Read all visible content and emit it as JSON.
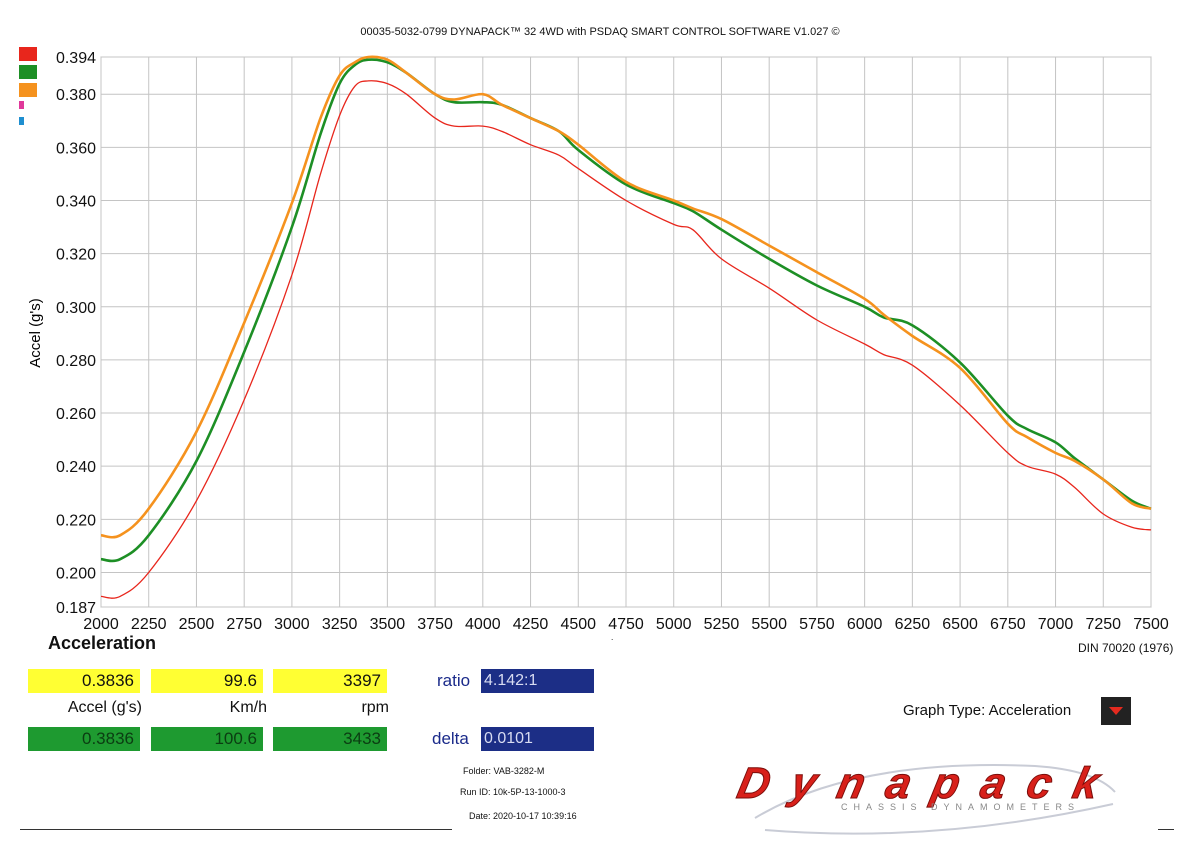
{
  "header": {
    "title": "00035-5032-0799 DYNAPACK™ 32 4WD with PSDAQ SMART CONTROL SOFTWARE V1.027 ©"
  },
  "chart_data": {
    "type": "line",
    "xlabel": "Engine RPM",
    "ylabel": "Accel (g's)",
    "xlim": [
      2000,
      7500
    ],
    "ylim": [
      0.187,
      0.394
    ],
    "x_ticks": [
      "2000",
      "2250",
      "2500",
      "2750",
      "3000",
      "3250",
      "3500",
      "3750",
      "4000",
      "4250",
      "4500",
      "4750",
      "5000",
      "5250",
      "5500",
      "5750",
      "6000",
      "6250",
      "6500",
      "6750",
      "7000",
      "7250",
      "7500"
    ],
    "y_ticks": [
      "0.187",
      "0.200",
      "0.220",
      "0.240",
      "0.260",
      "0.280",
      "0.300",
      "0.320",
      "0.340",
      "0.360",
      "0.380",
      "0.394"
    ],
    "grid": true,
    "series": [
      {
        "color": "#e8261c",
        "points": [
          [
            2000,
            0.191
          ],
          [
            2100,
            0.191
          ],
          [
            2250,
            0.2
          ],
          [
            2500,
            0.227
          ],
          [
            2750,
            0.265
          ],
          [
            3000,
            0.312
          ],
          [
            3150,
            0.35
          ],
          [
            3250,
            0.372
          ],
          [
            3330,
            0.383
          ],
          [
            3400,
            0.385
          ],
          [
            3500,
            0.384
          ],
          [
            3600,
            0.38
          ],
          [
            3750,
            0.371
          ],
          [
            3850,
            0.368
          ],
          [
            4000,
            0.368
          ],
          [
            4100,
            0.366
          ],
          [
            4250,
            0.361
          ],
          [
            4400,
            0.357
          ],
          [
            4500,
            0.352
          ],
          [
            4750,
            0.34
          ],
          [
            5000,
            0.331
          ],
          [
            5100,
            0.329
          ],
          [
            5250,
            0.318
          ],
          [
            5500,
            0.307
          ],
          [
            5750,
            0.295
          ],
          [
            6000,
            0.286
          ],
          [
            6100,
            0.282
          ],
          [
            6250,
            0.278
          ],
          [
            6500,
            0.263
          ],
          [
            6750,
            0.245
          ],
          [
            6850,
            0.24
          ],
          [
            7000,
            0.237
          ],
          [
            7100,
            0.232
          ],
          [
            7250,
            0.222
          ],
          [
            7400,
            0.217
          ],
          [
            7500,
            0.216
          ]
        ]
      },
      {
        "color": "#1d8f25",
        "points": [
          [
            2000,
            0.205
          ],
          [
            2100,
            0.205
          ],
          [
            2250,
            0.214
          ],
          [
            2500,
            0.242
          ],
          [
            2750,
            0.283
          ],
          [
            3000,
            0.33
          ],
          [
            3150,
            0.365
          ],
          [
            3250,
            0.384
          ],
          [
            3330,
            0.391
          ],
          [
            3400,
            0.393
          ],
          [
            3500,
            0.392
          ],
          [
            3600,
            0.388
          ],
          [
            3750,
            0.38
          ],
          [
            3850,
            0.377
          ],
          [
            4000,
            0.377
          ],
          [
            4100,
            0.376
          ],
          [
            4250,
            0.371
          ],
          [
            4400,
            0.366
          ],
          [
            4500,
            0.359
          ],
          [
            4750,
            0.346
          ],
          [
            5000,
            0.339
          ],
          [
            5100,
            0.336
          ],
          [
            5250,
            0.329
          ],
          [
            5500,
            0.318
          ],
          [
            5750,
            0.308
          ],
          [
            6000,
            0.3
          ],
          [
            6100,
            0.296
          ],
          [
            6250,
            0.293
          ],
          [
            6500,
            0.279
          ],
          [
            6750,
            0.259
          ],
          [
            6850,
            0.254
          ],
          [
            7000,
            0.249
          ],
          [
            7100,
            0.243
          ],
          [
            7250,
            0.235
          ],
          [
            7400,
            0.227
          ],
          [
            7500,
            0.224
          ]
        ]
      },
      {
        "color": "#f5921e",
        "points": [
          [
            2000,
            0.214
          ],
          [
            2100,
            0.214
          ],
          [
            2250,
            0.224
          ],
          [
            2500,
            0.253
          ],
          [
            2750,
            0.294
          ],
          [
            3000,
            0.339
          ],
          [
            3150,
            0.371
          ],
          [
            3250,
            0.387
          ],
          [
            3330,
            0.392
          ],
          [
            3400,
            0.394
          ],
          [
            3500,
            0.393
          ],
          [
            3600,
            0.388
          ],
          [
            3750,
            0.38
          ],
          [
            3850,
            0.378
          ],
          [
            4000,
            0.38
          ],
          [
            4100,
            0.376
          ],
          [
            4250,
            0.371
          ],
          [
            4400,
            0.366
          ],
          [
            4500,
            0.361
          ],
          [
            4750,
            0.347
          ],
          [
            5000,
            0.34
          ],
          [
            5100,
            0.337
          ],
          [
            5250,
            0.333
          ],
          [
            5500,
            0.323
          ],
          [
            5750,
            0.313
          ],
          [
            6000,
            0.303
          ],
          [
            6100,
            0.297
          ],
          [
            6250,
            0.289
          ],
          [
            6500,
            0.277
          ],
          [
            6750,
            0.256
          ],
          [
            6850,
            0.251
          ],
          [
            7000,
            0.245
          ],
          [
            7100,
            0.242
          ],
          [
            7250,
            0.235
          ],
          [
            7400,
            0.226
          ],
          [
            7500,
            0.224
          ]
        ]
      }
    ]
  },
  "legend": {
    "swatches": [
      "#e8261c",
      "#1d8f25",
      "#f5921e",
      "#e0389a",
      "#1f8fd0"
    ]
  },
  "graph_title": "Acceleration",
  "standard": "DIN 70020 (1976)",
  "readout": {
    "row1": {
      "accel": "0.3836",
      "speed": "99.6",
      "rpm": "3397"
    },
    "labels": {
      "accel": "Accel (g's)",
      "speed": "Km/h",
      "rpm": "rpm"
    },
    "row2": {
      "accel": "0.3836",
      "speed": "100.6",
      "rpm": "3433"
    },
    "ratio_label": "ratio",
    "ratio_value": "4.142:1",
    "delta_label": "delta",
    "delta_value": "0.0101"
  },
  "graph_type": {
    "label": "Graph Type: Acceleration"
  },
  "meta": {
    "folder": "Folder:  VAB-3282-M",
    "run_id": "Run ID:  10k-5P-13-1000-3",
    "date": "Date:  2020-10-17 10:39:16"
  },
  "logo": {
    "name": "Dynapack",
    "tagline": "CHASSIS DYNAMOMETERS"
  }
}
